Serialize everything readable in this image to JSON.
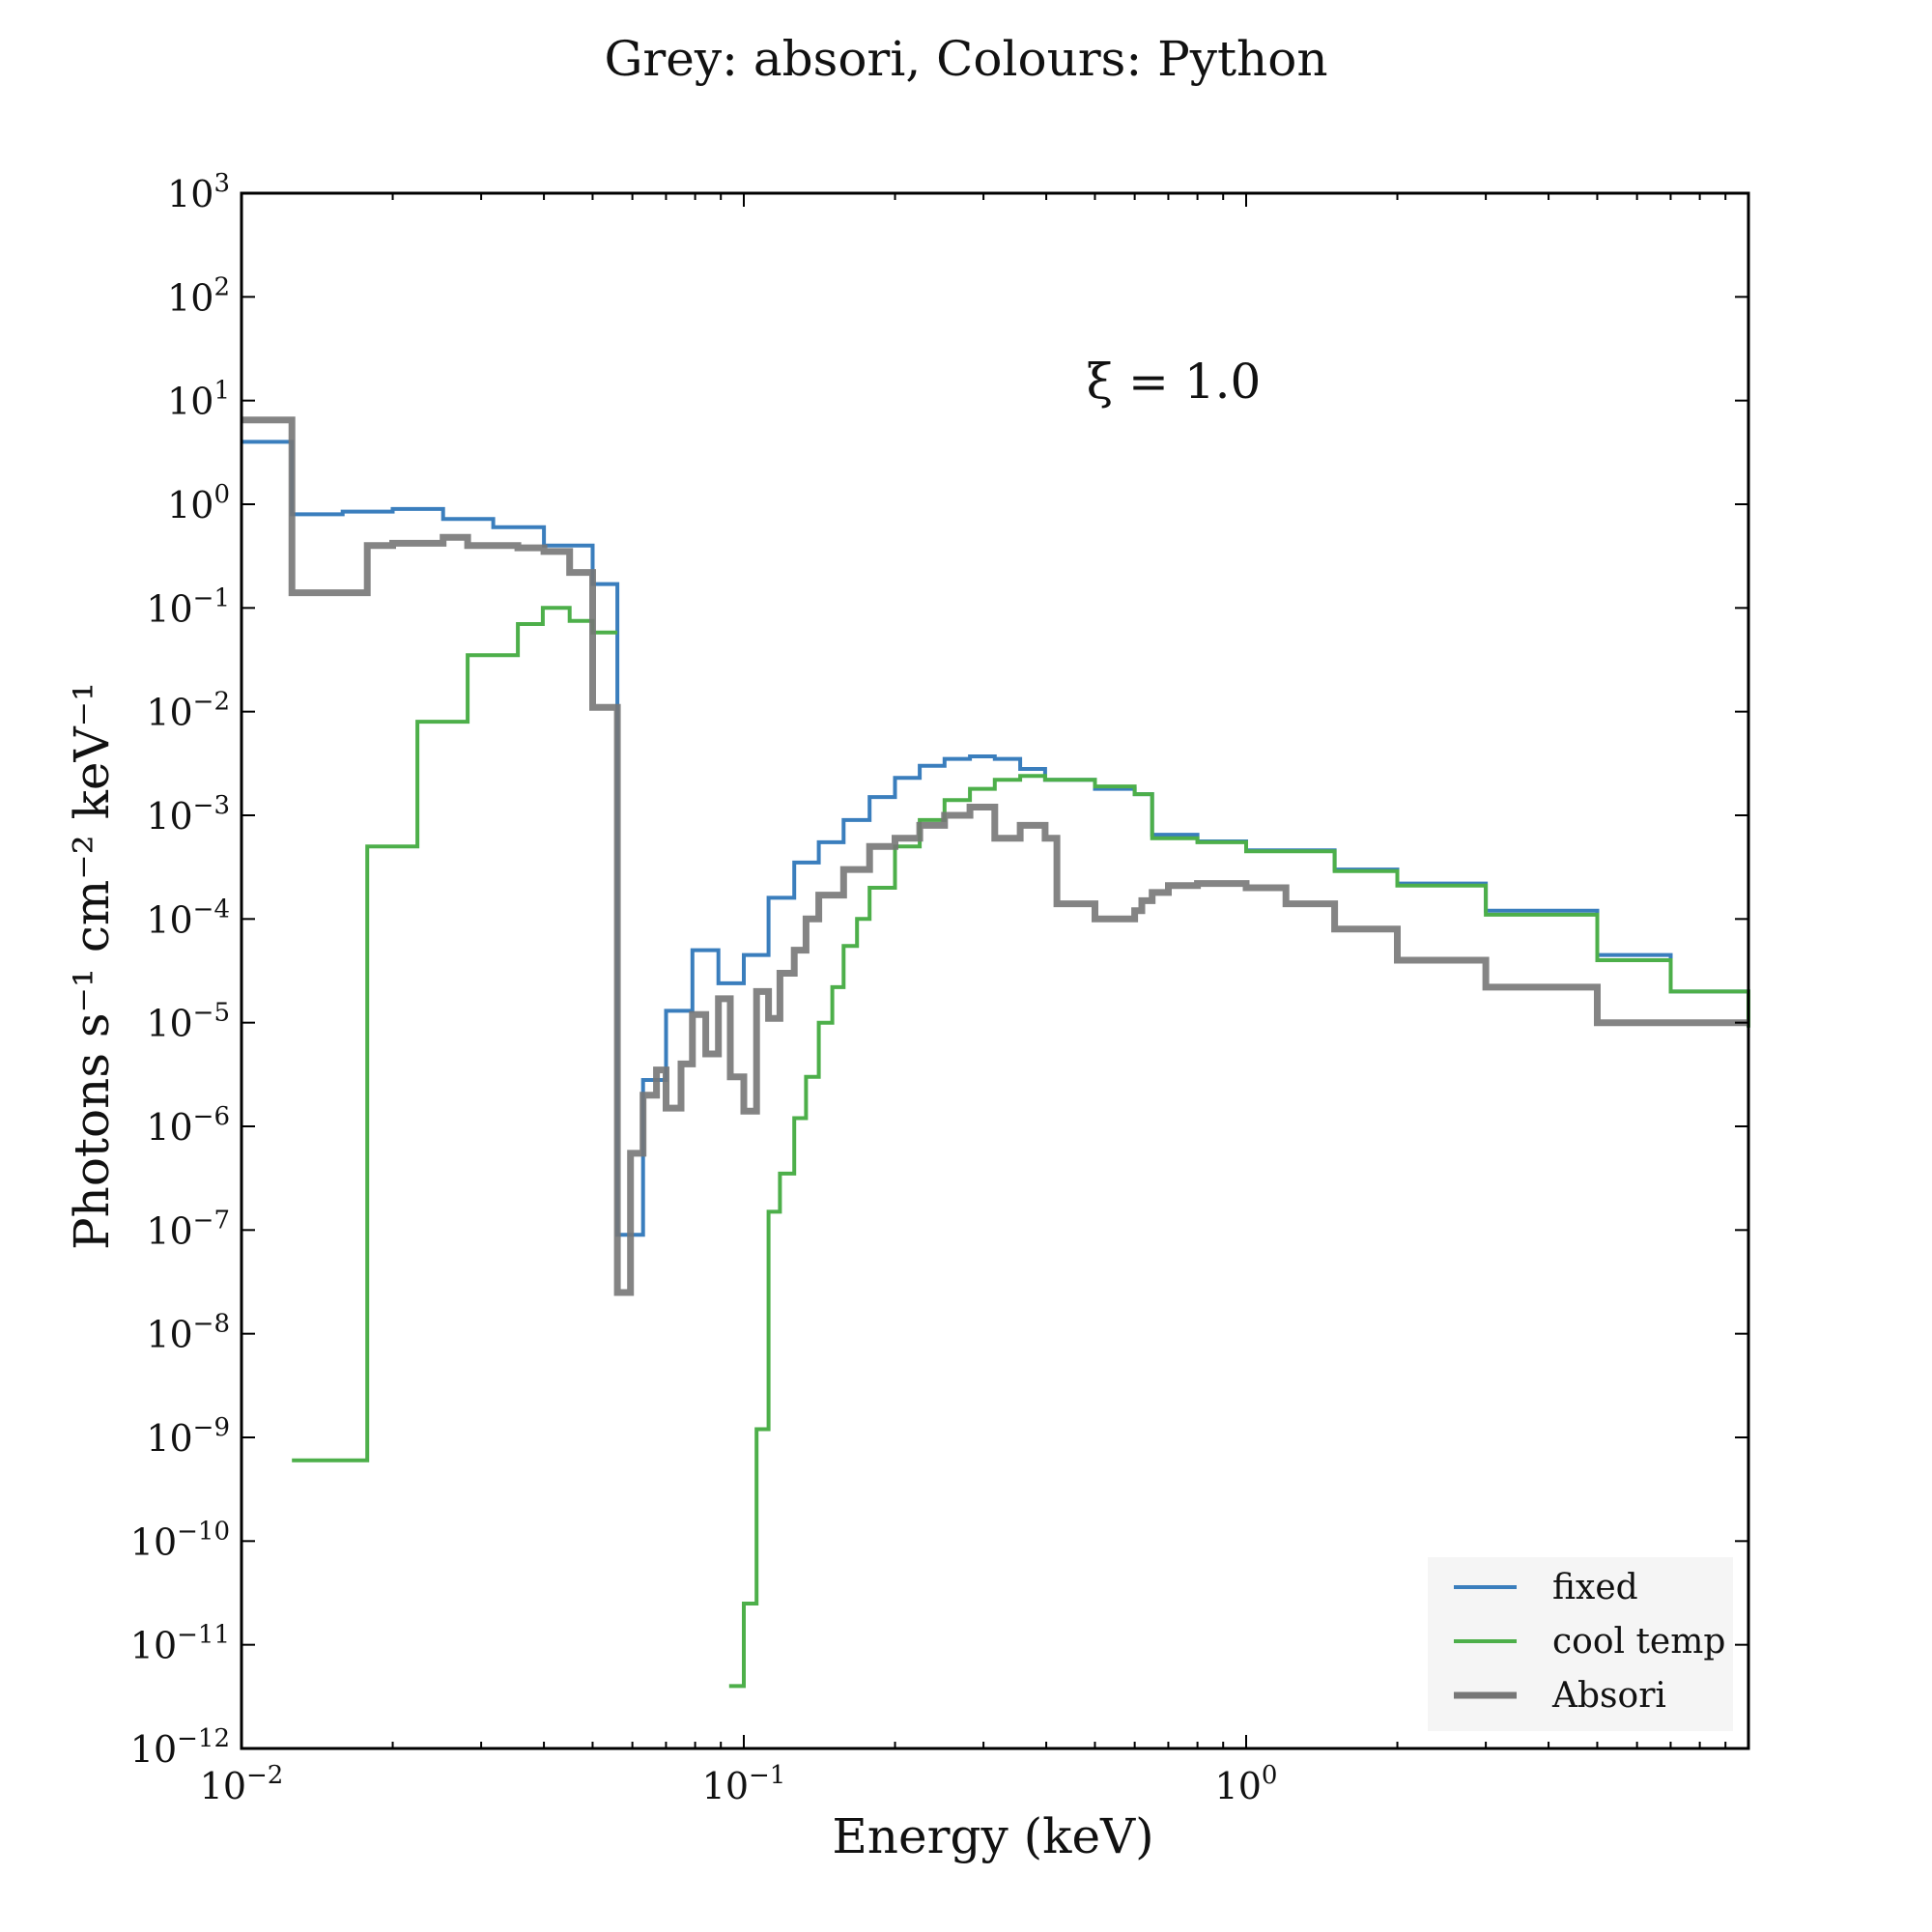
{
  "chart_data": {
    "type": "line",
    "title": "Grey: absori, Colours: Python",
    "xlabel": "Energy (keV)",
    "ylabel": "Photons s⁻¹ cm⁻² keV⁻¹",
    "annotation": "ξ = 1.0",
    "xscale": "log",
    "yscale": "log",
    "xlim": [
      0.01,
      10
    ],
    "ylim": [
      1e-12,
      1000
    ],
    "x_ticks": [
      {
        "base": "10",
        "exp": "−2",
        "value": 0.01
      },
      {
        "base": "10",
        "exp": "−1",
        "value": 0.1
      },
      {
        "base": "10",
        "exp": "0",
        "value": 1
      }
    ],
    "y_ticks": [
      {
        "base": "10",
        "exp": "3",
        "value": 1000
      },
      {
        "base": "10",
        "exp": "2",
        "value": 100
      },
      {
        "base": "10",
        "exp": "1",
        "value": 10
      },
      {
        "base": "10",
        "exp": "0",
        "value": 1
      },
      {
        "base": "10",
        "exp": "−1",
        "value": 0.1
      },
      {
        "base": "10",
        "exp": "−2",
        "value": 0.01
      },
      {
        "base": "10",
        "exp": "−3",
        "value": 0.001
      },
      {
        "base": "10",
        "exp": "−4",
        "value": 0.0001
      },
      {
        "base": "10",
        "exp": "−5",
        "value": 1e-05
      },
      {
        "base": "10",
        "exp": "−6",
        "value": 1e-06
      },
      {
        "base": "10",
        "exp": "−7",
        "value": 1e-07
      },
      {
        "base": "10",
        "exp": "−8",
        "value": 1e-08
      },
      {
        "base": "10",
        "exp": "−9",
        "value": 1e-09
      },
      {
        "base": "10",
        "exp": "−10",
        "value": 1e-10
      },
      {
        "base": "10",
        "exp": "−11",
        "value": 1e-11
      },
      {
        "base": "10",
        "exp": "−12",
        "value": 1e-12
      }
    ],
    "legend_position": "bottom-right",
    "grid": false,
    "series": [
      {
        "name": "fixed",
        "color": "#3a7ebd",
        "style": "step",
        "x": [
          0.01,
          0.0126,
          0.0159,
          0.02,
          0.0252,
          0.0317,
          0.04,
          0.05,
          0.056,
          0.063,
          0.07,
          0.079,
          0.089,
          0.1,
          0.112,
          0.126,
          0.141,
          0.158,
          0.178,
          0.2,
          0.224,
          0.251,
          0.282,
          0.316,
          0.355,
          0.398,
          0.5,
          0.6,
          0.65,
          0.8,
          1.0,
          1.5,
          2.0,
          3.0,
          5.0,
          7.0,
          10.0
        ],
        "y": [
          4.0,
          0.8,
          0.85,
          0.9,
          0.72,
          0.6,
          0.4,
          0.17,
          9e-08,
          2.8e-06,
          1.3e-05,
          5e-05,
          2.4e-05,
          4.5e-05,
          0.00016,
          0.00035,
          0.00055,
          0.0009,
          0.0015,
          0.0023,
          0.003,
          0.0035,
          0.0037,
          0.0035,
          0.0028,
          0.0022,
          0.0018,
          0.0016,
          0.00065,
          0.00056,
          0.00046,
          0.0003,
          0.00022,
          0.00012,
          4.5e-05,
          2e-05,
          9e-06
        ]
      },
      {
        "name": "cool temp",
        "color": "#4daf4a",
        "style": "step",
        "x": [
          0.0126,
          0.0178,
          0.0224,
          0.0282,
          0.0355,
          0.0398,
          0.045,
          0.05,
          0.056,
          0.0935,
          0.1,
          0.106,
          0.112,
          0.118,
          0.126,
          0.133,
          0.141,
          0.15,
          0.158,
          0.168,
          0.178,
          0.2,
          0.224,
          0.251,
          0.282,
          0.316,
          0.355,
          0.398,
          0.5,
          0.6,
          0.65,
          0.8,
          1.0,
          1.5,
          2.0,
          3.0,
          5.0,
          7.0,
          10.0
        ],
        "y": [
          6e-10,
          0.0005,
          0.008,
          0.035,
          0.07,
          0.1,
          0.075,
          0.058,
          null,
          4e-12,
          2.5e-11,
          1.2e-09,
          1.5e-07,
          3.5e-07,
          1.2e-06,
          3e-06,
          1e-05,
          2.2e-05,
          5.5e-05,
          0.0001,
          0.0002,
          0.0005,
          0.0009,
          0.0014,
          0.0018,
          0.0022,
          0.0024,
          0.0022,
          0.0019,
          0.0016,
          0.0006,
          0.00055,
          0.00045,
          0.00029,
          0.00021,
          0.00011,
          4e-05,
          2e-05,
          9e-06
        ]
      },
      {
        "name": "Absori",
        "color": "#777777",
        "style": "step",
        "x": [
          0.01,
          0.0126,
          0.0178,
          0.02,
          0.0252,
          0.0282,
          0.0355,
          0.04,
          0.045,
          0.05,
          0.056,
          0.0595,
          0.063,
          0.067,
          0.07,
          0.075,
          0.079,
          0.084,
          0.089,
          0.094,
          0.1,
          0.106,
          0.112,
          0.118,
          0.126,
          0.133,
          0.141,
          0.158,
          0.178,
          0.2,
          0.224,
          0.251,
          0.282,
          0.316,
          0.355,
          0.398,
          0.42,
          0.5,
          0.6,
          0.62,
          0.65,
          0.7,
          0.8,
          1.0,
          1.2,
          1.5,
          2.0,
          3.0,
          5.0,
          7.0,
          10.0
        ],
        "y": [
          6.5,
          0.14,
          0.4,
          0.42,
          0.48,
          0.4,
          0.38,
          0.35,
          0.22,
          0.011,
          2.5e-08,
          5.5e-07,
          2e-06,
          3.5e-06,
          1.5e-06,
          4e-06,
          1.2e-05,
          5e-06,
          1.7e-05,
          3e-06,
          1.4e-06,
          2e-05,
          1.1e-05,
          3e-05,
          5e-05,
          0.0001,
          0.00017,
          0.0003,
          0.0005,
          0.0006,
          0.0008,
          0.001,
          0.0012,
          0.0006,
          0.0008,
          0.0006,
          0.00014,
          0.0001,
          0.00012,
          0.00015,
          0.00018,
          0.00021,
          0.00022,
          0.0002,
          0.00014,
          8e-05,
          4e-05,
          2.2e-05,
          1e-05,
          1e-05,
          1e-05
        ]
      }
    ]
  }
}
